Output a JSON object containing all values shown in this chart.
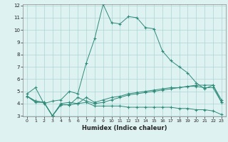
{
  "xlabel": "Humidex (Indice chaleur)",
  "x": [
    0,
    1,
    2,
    3,
    4,
    5,
    6,
    7,
    8,
    9,
    10,
    11,
    12,
    13,
    14,
    15,
    16,
    17,
    18,
    19,
    20,
    21,
    22,
    23
  ],
  "line1": [
    4.8,
    5.3,
    4.0,
    4.2,
    4.3,
    5.0,
    4.8,
    7.3,
    9.3,
    12.1,
    10.6,
    10.5,
    11.1,
    11.0,
    10.2,
    10.1,
    8.3,
    7.5,
    7.0,
    6.5,
    5.7,
    5.2,
    5.5,
    4.3
  ],
  "line2": [
    4.6,
    4.1,
    4.1,
    3.0,
    4.0,
    4.1,
    4.0,
    4.5,
    4.1,
    4.3,
    4.5,
    4.6,
    4.8,
    4.9,
    5.0,
    5.1,
    5.2,
    5.3,
    5.3,
    5.4,
    5.4,
    5.3,
    5.3,
    4.1
  ],
  "line3": [
    4.6,
    4.2,
    4.1,
    3.0,
    3.9,
    3.9,
    4.0,
    4.1,
    3.8,
    3.8,
    3.8,
    3.8,
    3.7,
    3.7,
    3.7,
    3.7,
    3.7,
    3.7,
    3.6,
    3.6,
    3.5,
    3.5,
    3.4,
    3.1
  ],
  "line4": [
    4.6,
    4.2,
    4.1,
    3.0,
    3.9,
    3.9,
    4.5,
    4.2,
    4.0,
    4.1,
    4.3,
    4.5,
    4.7,
    4.8,
    4.9,
    5.0,
    5.1,
    5.2,
    5.3,
    5.4,
    5.5,
    5.5,
    5.5,
    4.1
  ],
  "color": "#2e8b7a",
  "bg_color": "#dff2f2",
  "grid_color": "#aed4d4",
  "ylim": [
    3,
    12
  ],
  "yticks": [
    3,
    4,
    5,
    6,
    7,
    8,
    9,
    10,
    11,
    12
  ],
  "xticks": [
    0,
    1,
    2,
    3,
    4,
    5,
    6,
    7,
    8,
    9,
    10,
    11,
    12,
    13,
    14,
    15,
    16,
    17,
    18,
    19,
    20,
    21,
    22,
    23
  ]
}
